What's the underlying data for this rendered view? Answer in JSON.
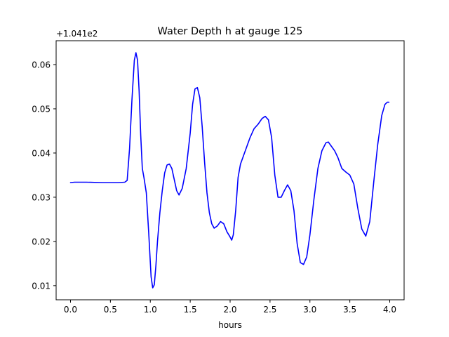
{
  "chart_data": {
    "type": "line",
    "title": "Water Depth h at gauge 125",
    "xlabel": "hours",
    "ylabel": "",
    "offset_label": "+1.041e2",
    "xlim": [
      -0.18,
      4.18
    ],
    "ylim": [
      0.0068,
      0.0654
    ],
    "x_ticks": [
      0.0,
      0.5,
      1.0,
      1.5,
      2.0,
      2.5,
      3.0,
      3.5,
      4.0
    ],
    "x_tick_labels": [
      "0.0",
      "0.5",
      "1.0",
      "1.5",
      "2.0",
      "2.5",
      "3.0",
      "3.5",
      "4.0"
    ],
    "y_ticks": [
      0.01,
      0.02,
      0.03,
      0.04,
      0.05,
      0.06
    ],
    "y_tick_labels": [
      "0.01",
      "0.02",
      "0.03",
      "0.04",
      "0.05",
      "0.06"
    ],
    "grid": false,
    "line_color": "#0000ff",
    "series": [
      {
        "x": [
          0.0,
          0.05,
          0.2,
          0.4,
          0.6,
          0.68,
          0.71,
          0.74,
          0.77,
          0.8,
          0.82,
          0.84,
          0.86,
          0.88,
          0.9,
          0.92,
          0.95,
          0.98,
          1.01,
          1.03,
          1.05,
          1.07,
          1.09,
          1.12,
          1.15,
          1.18,
          1.21,
          1.24,
          1.27,
          1.3,
          1.33,
          1.36,
          1.4,
          1.45,
          1.5,
          1.53,
          1.56,
          1.59,
          1.62,
          1.65,
          1.68,
          1.71,
          1.74,
          1.77,
          1.8,
          1.84,
          1.88,
          1.92,
          1.96,
          2.0,
          2.02,
          2.04,
          2.07,
          2.1,
          2.13,
          2.17,
          2.21,
          2.25,
          2.3,
          2.35,
          2.4,
          2.44,
          2.48,
          2.52,
          2.56,
          2.6,
          2.64,
          2.68,
          2.72,
          2.76,
          2.8,
          2.84,
          2.88,
          2.92,
          2.96,
          3.0,
          3.05,
          3.1,
          3.15,
          3.2,
          3.23,
          3.27,
          3.31,
          3.35,
          3.4,
          3.45,
          3.5,
          3.55,
          3.6,
          3.65,
          3.7,
          3.75,
          3.8,
          3.85,
          3.9,
          3.94,
          3.97,
          3.99
        ],
        "y": [
          0.0333,
          0.0334,
          0.0334,
          0.0333,
          0.0333,
          0.0334,
          0.0338,
          0.041,
          0.052,
          0.061,
          0.0627,
          0.061,
          0.054,
          0.044,
          0.0365,
          0.0345,
          0.031,
          0.022,
          0.012,
          0.0095,
          0.0102,
          0.0145,
          0.02,
          0.0265,
          0.0315,
          0.0355,
          0.0373,
          0.0375,
          0.0365,
          0.034,
          0.0315,
          0.0305,
          0.032,
          0.0365,
          0.0445,
          0.051,
          0.0545,
          0.0548,
          0.0525,
          0.046,
          0.038,
          0.031,
          0.0265,
          0.024,
          0.023,
          0.0235,
          0.0245,
          0.024,
          0.0222,
          0.021,
          0.0203,
          0.0215,
          0.027,
          0.0345,
          0.0375,
          0.0395,
          0.0415,
          0.0435,
          0.0455,
          0.0465,
          0.0478,
          0.0483,
          0.0475,
          0.0435,
          0.035,
          0.03,
          0.03,
          0.0315,
          0.0328,
          0.0315,
          0.027,
          0.0195,
          0.0152,
          0.0148,
          0.0165,
          0.0215,
          0.0295,
          0.0365,
          0.0405,
          0.0423,
          0.0425,
          0.0415,
          0.0405,
          0.039,
          0.0365,
          0.0357,
          0.035,
          0.033,
          0.0275,
          0.0228,
          0.0212,
          0.0245,
          0.0335,
          0.042,
          0.0485,
          0.051,
          0.0515,
          0.0515
        ]
      }
    ]
  }
}
